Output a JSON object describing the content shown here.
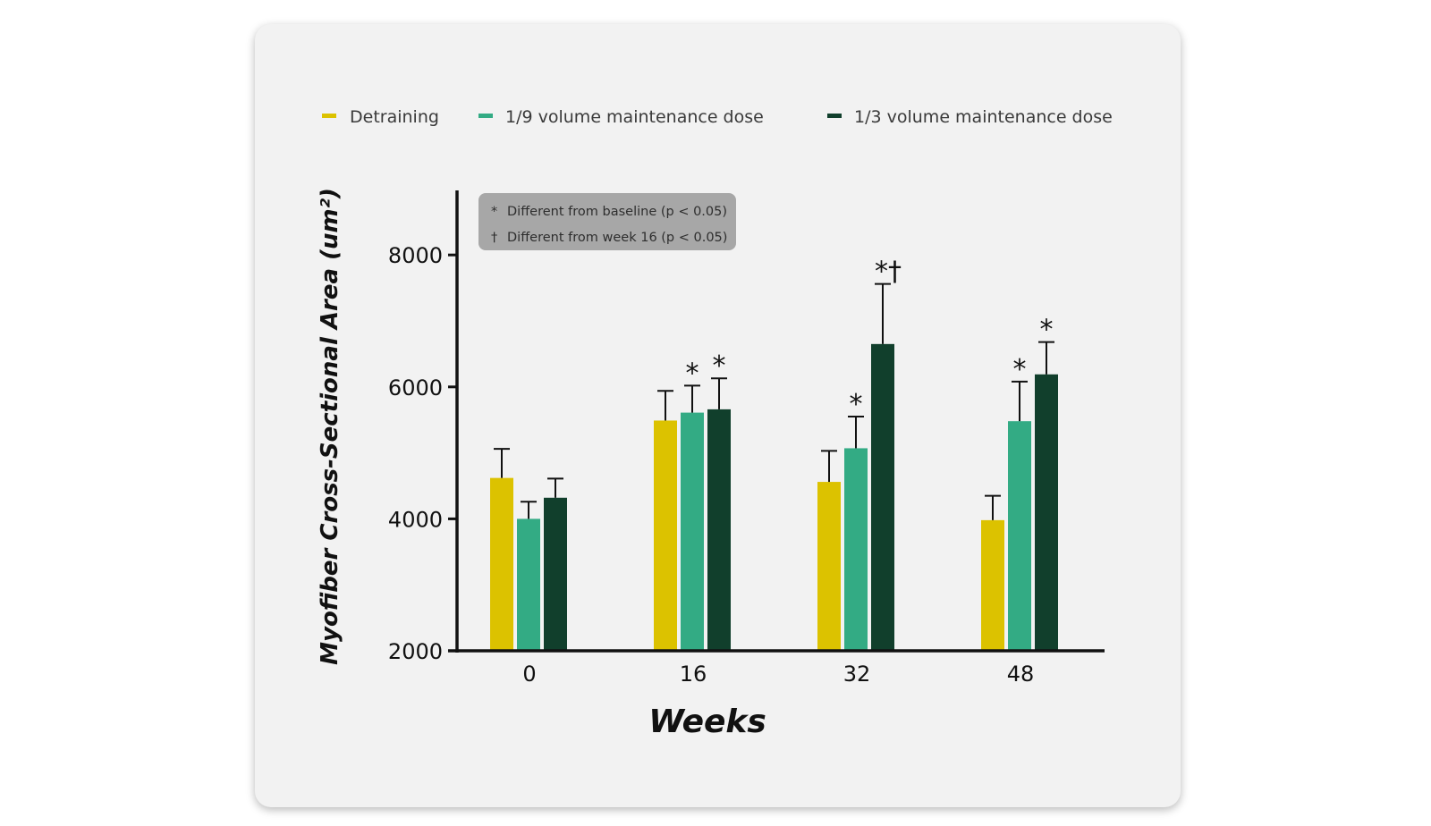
{
  "colors": {
    "card_background": "#f2f2f2",
    "axis": "#111111"
  },
  "notes": [
    {
      "symbol": "*",
      "text": "Different from baseline (p < 0.05)"
    },
    {
      "symbol": "†",
      "text": "Different from week 16 (p < 0.05)"
    }
  ],
  "chart_data": {
    "type": "bar",
    "xlabel": "Weeks",
    "ylabel": "Myofiber Cross-Sectional Area (um²)",
    "categories": [
      "0",
      "16",
      "32",
      "48"
    ],
    "ylim": [
      2000,
      9000
    ],
    "yticks": [
      2000,
      4000,
      6000,
      8000
    ],
    "grid": false,
    "legend_position": "top",
    "series": [
      {
        "name": "Detraining",
        "color": "#dcc200",
        "values": [
          4620,
          5490,
          4560,
          3980
        ],
        "error": [
          440,
          450,
          470,
          370
        ],
        "significance": [
          "",
          "",
          "",
          ""
        ]
      },
      {
        "name": "1/9 volume maintenance dose",
        "color": "#33ab84",
        "values": [
          4000,
          5610,
          5070,
          5480
        ],
        "error": [
          260,
          410,
          480,
          600
        ],
        "significance": [
          "",
          "*",
          "*",
          "*"
        ]
      },
      {
        "name": "1/3 volume maintenance dose",
        "color": "#113f2c",
        "values": [
          4320,
          5660,
          6650,
          6190
        ],
        "error": [
          290,
          470,
          910,
          490
        ],
        "significance": [
          "",
          "*",
          "*†",
          "*"
        ]
      }
    ]
  }
}
